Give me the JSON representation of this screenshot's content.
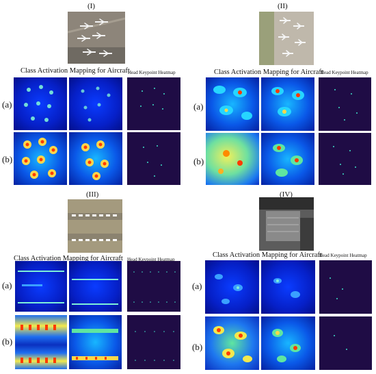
{
  "panels": [
    {
      "id": "I",
      "roman": "(I)",
      "cam_title": "Class Activation Mapping for Aircraft",
      "hk_title": "Head Keypoint Heatmap",
      "row_a": "(a)",
      "row_b": "(b)"
    },
    {
      "id": "II",
      "roman": "(II)",
      "cam_title": "Class Activation Mapping for Aircraft",
      "hk_title": "Head Keypoint Heatmap",
      "row_a": "(a)",
      "row_b": "(b)"
    },
    {
      "id": "III",
      "roman": "(III)",
      "cam_title": "Class Activation Mapping for Aircraft",
      "hk_title": "Head Keypoint Heatmap",
      "row_a": "(a)",
      "row_b": "(b)"
    },
    {
      "id": "IV",
      "roman": "(IV)",
      "cam_title": "Class Activation Mapping for Aircraft",
      "hk_title": "Head Keypoint Heatmap",
      "row_a": "(a)",
      "row_b": "(b)"
    }
  ],
  "colors": {
    "heatmap_bg": "#1f0c45",
    "cam_low": "#0620c8",
    "cam_mid": "#19c8ff",
    "cam_high": "#ff2a00",
    "keypoint": "#3fe0c8"
  }
}
